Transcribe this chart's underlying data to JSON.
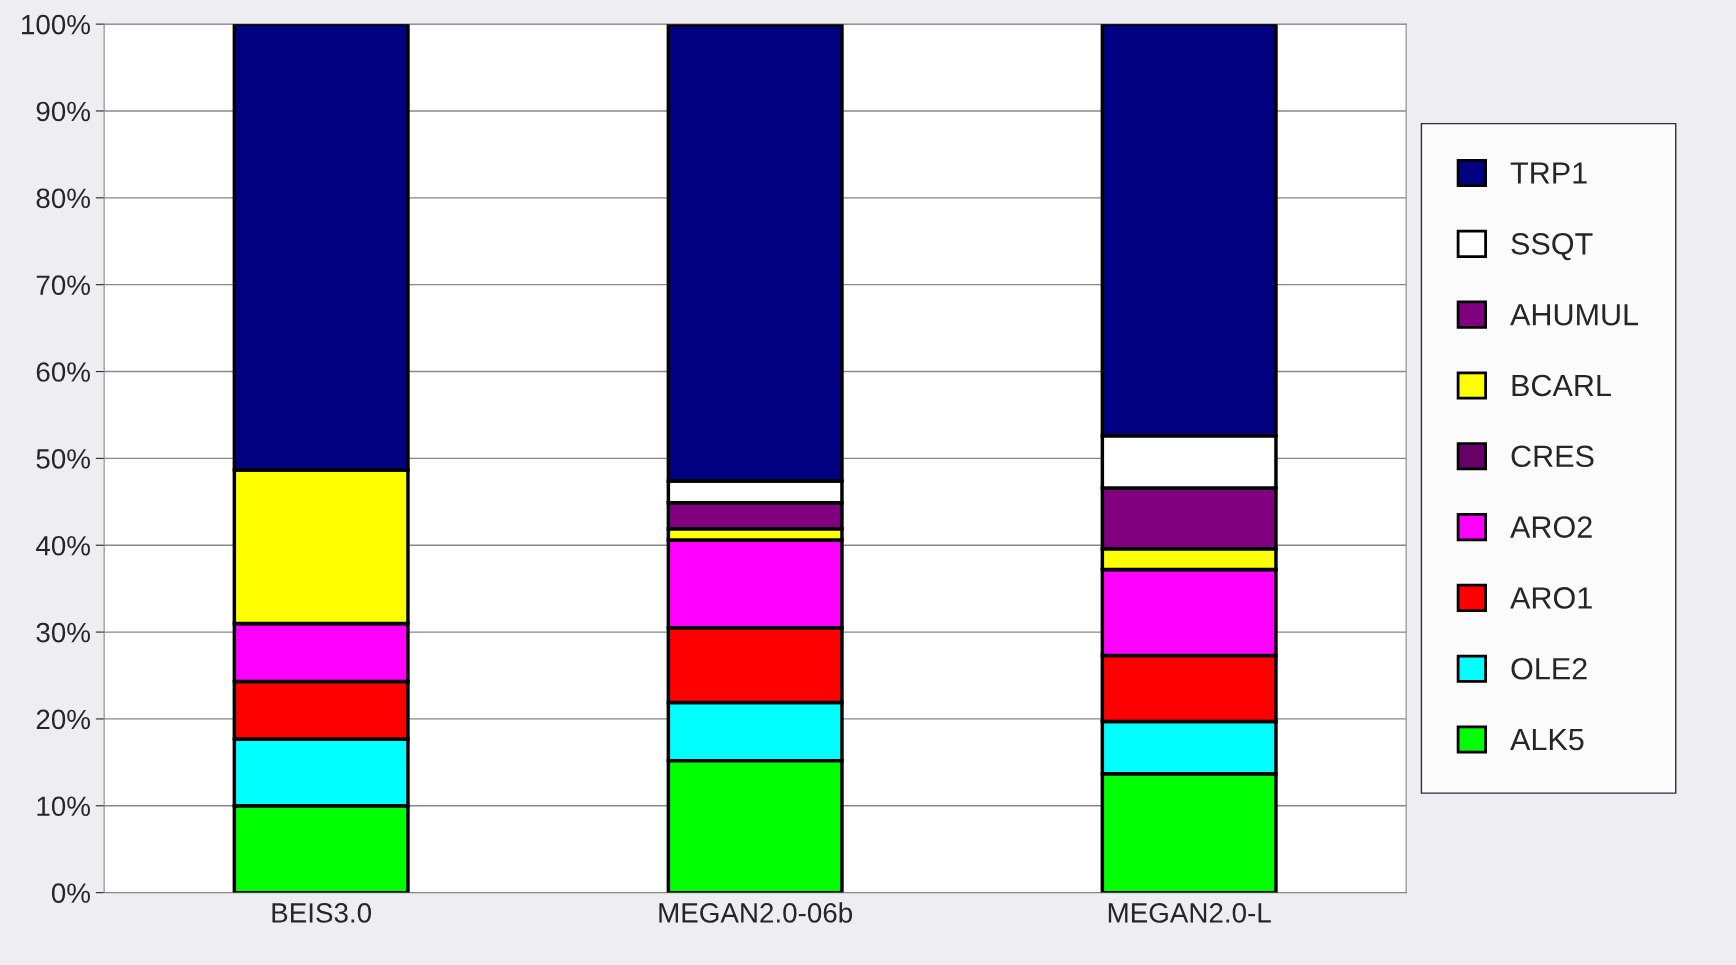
{
  "chart_data": {
    "type": "bar",
    "stacked": true,
    "categories": [
      "BEIS3.0",
      "MEGAN2.0-06b",
      "MEGAN2.0-L"
    ],
    "series": [
      {
        "name": "ALK5",
        "color": "#00ff00",
        "values": [
          10.0,
          15.2,
          13.7
        ]
      },
      {
        "name": "OLE2",
        "color": "#00ffff",
        "values": [
          7.7,
          6.7,
          6.0
        ]
      },
      {
        "name": "ARO1",
        "color": "#ff0000",
        "values": [
          6.6,
          8.6,
          7.6
        ]
      },
      {
        "name": "ARO2",
        "color": "#ff00ff",
        "values": [
          6.7,
          10.1,
          9.9
        ]
      },
      {
        "name": "CRES",
        "color": "#660066",
        "values": [
          0,
          0,
          0
        ]
      },
      {
        "name": "BCARL",
        "color": "#ffff00",
        "values": [
          17.7,
          1.3,
          2.4
        ]
      },
      {
        "name": "AHUMUL",
        "color": "#800080",
        "values": [
          0,
          3.0,
          7.0
        ]
      },
      {
        "name": "SSQT",
        "color": "#ffffff",
        "values": [
          0,
          2.5,
          6.0
        ]
      },
      {
        "name": "TRP1",
        "color": "#000080",
        "values": [
          51.3,
          52.5,
          47.4
        ]
      }
    ],
    "ylim": [
      0,
      100
    ],
    "yticks": [
      {
        "value": 0,
        "label": "0%"
      },
      {
        "value": 10,
        "label": "10%"
      },
      {
        "value": 20,
        "label": "20%"
      },
      {
        "value": 30,
        "label": "30%"
      },
      {
        "value": 40,
        "label": "40%"
      },
      {
        "value": 50,
        "label": "50%"
      },
      {
        "value": 60,
        "label": "60%"
      },
      {
        "value": 70,
        "label": "70%"
      },
      {
        "value": 80,
        "label": "80%"
      },
      {
        "value": 90,
        "label": "90%"
      },
      {
        "value": 100,
        "label": "100%"
      }
    ],
    "grid": "y",
    "legend": "right"
  }
}
